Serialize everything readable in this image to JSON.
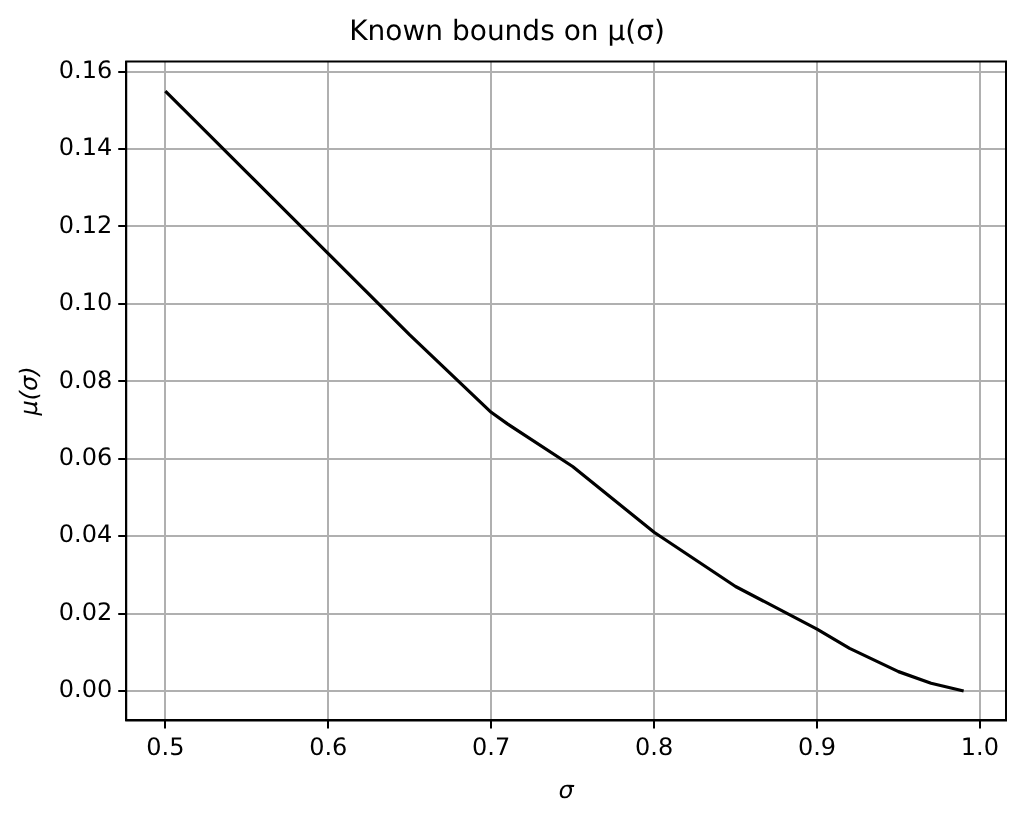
{
  "chart_data": {
    "type": "line",
    "title": "Known bounds on μ(σ)",
    "xlabel": "σ",
    "ylabel": "μ(σ)",
    "x": [
      0.5,
      0.55,
      0.6,
      0.65,
      0.7,
      0.71,
      0.75,
      0.8,
      0.85,
      0.9,
      0.92,
      0.95,
      0.97,
      0.99
    ],
    "series": [
      {
        "color": "#000000",
        "values": [
          0.155,
          0.134,
          0.113,
          0.092,
          0.072,
          0.069,
          0.058,
          0.041,
          0.027,
          0.016,
          0.011,
          0.005,
          0.002,
          0.0
        ]
      }
    ],
    "xlim": [
      0.476,
      1.016
    ],
    "xticks": [
      {
        "value": 0.5,
        "label": "0.5"
      },
      {
        "value": 0.6,
        "label": "0.6"
      },
      {
        "value": 0.7,
        "label": "0.7"
      },
      {
        "value": 0.8,
        "label": "0.8"
      },
      {
        "value": 0.9,
        "label": "0.9"
      },
      {
        "value": 1.0,
        "label": "1.0"
      }
    ],
    "ylim": [
      -0.0076,
      0.1626
    ],
    "yticks": [
      {
        "value": 0,
        "label": "0.00"
      },
      {
        "value": 0.02,
        "label": "0.02"
      },
      {
        "value": 0.04,
        "label": "0.04"
      },
      {
        "value": 0.06,
        "label": "0.06"
      },
      {
        "value": 0.08,
        "label": "0.08"
      },
      {
        "value": 0.1,
        "label": "0.10"
      },
      {
        "value": 0.12,
        "label": "0.12"
      },
      {
        "value": 0.14,
        "label": "0.14"
      },
      {
        "value": 0.16,
        "label": "0.16"
      }
    ],
    "grid": true,
    "legend": false,
    "marker": "none",
    "line_style": "solid"
  }
}
